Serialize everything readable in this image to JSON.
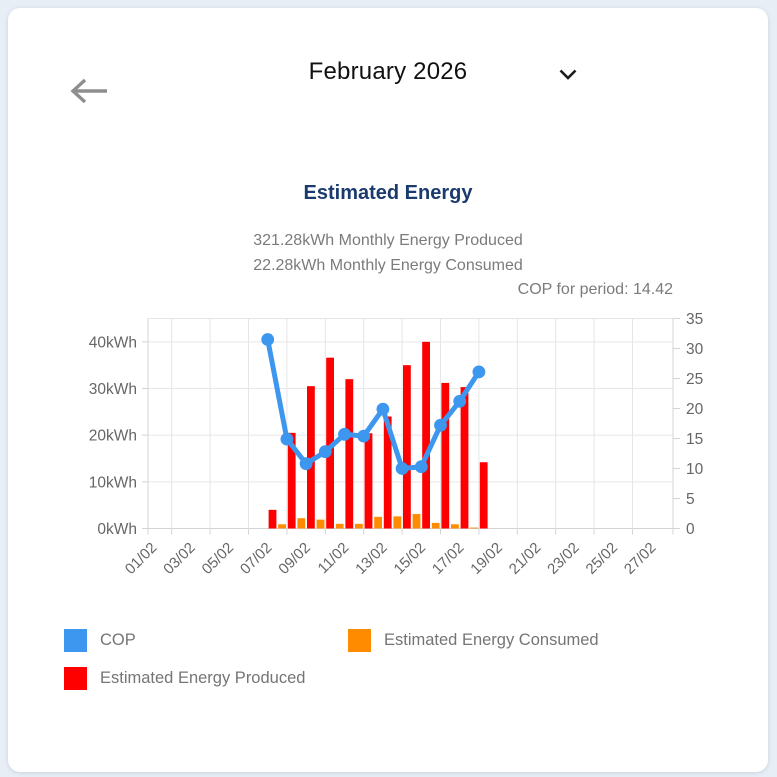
{
  "colors": {
    "page_background": "#e8eef6",
    "card_background": "#ffffff",
    "heading_navy": "#1b3b6f",
    "text_gray": "#7b7b7b",
    "axis_gray": "#666666",
    "grid_line": "#e6e6e6",
    "axis_border": "#d4d4d4",
    "cop_blue": "#3e97ef",
    "produced_red": "#fe0000",
    "consumed_orange": "#ff8c00"
  },
  "header": {
    "title": "February 2026",
    "back_icon": "arrow-left",
    "dropdown_icon": "chevron-down"
  },
  "section": {
    "title": "Estimated Energy",
    "produced_summary": "321.28kWh Monthly Energy Produced",
    "consumed_summary": "22.28kWh Monthly Energy Consumed",
    "cop_summary": "COP for period: 14.42"
  },
  "chart_data": {
    "type": "bar+line combo",
    "title": "Estimated Energy",
    "x_tick_labels": [
      "01/02",
      "03/02",
      "05/02",
      "07/02",
      "09/02",
      "11/02",
      "13/02",
      "15/02",
      "17/02",
      "19/02",
      "21/02",
      "23/02",
      "25/02",
      "27/02"
    ],
    "num_days": 28,
    "left_axis": {
      "tick_labels": [
        "0kWh",
        "10kWh",
        "20kWh",
        "30kWh",
        "40kWh"
      ],
      "tick_values": [
        0,
        10,
        20,
        30,
        40
      ],
      "range": [
        0,
        45
      ],
      "unit": "kWh"
    },
    "right_axis": {
      "tick_labels": [
        "0",
        "5",
        "10",
        "15",
        "20",
        "25",
        "30",
        "35"
      ],
      "tick_values": [
        0,
        5,
        10,
        15,
        20,
        25,
        30,
        35
      ],
      "range": [
        0,
        35
      ]
    },
    "days": [
      7,
      8,
      9,
      10,
      11,
      12,
      13,
      14,
      15,
      16,
      17,
      18
    ],
    "series": [
      {
        "name": "COP",
        "type": "line",
        "axis": "right",
        "color": "#3e97ef",
        "values": [
          31.5,
          14.9,
          10.8,
          12.8,
          15.7,
          15.4,
          19.9,
          10.0,
          10.3,
          17.2,
          21.2,
          26.1
        ]
      },
      {
        "name": "Estimated Energy Produced",
        "type": "bar",
        "axis": "left",
        "color": "#fe0000",
        "values": [
          4.0,
          20.5,
          30.5,
          36.6,
          32.0,
          20.4,
          24.0,
          35.0,
          40.0,
          31.2,
          30.3,
          14.2
        ]
      },
      {
        "name": "Estimated Energy Consumed",
        "type": "bar",
        "axis": "left",
        "color": "#ff8c00",
        "values": [
          0,
          0.9,
          2.2,
          1.9,
          1.0,
          1.0,
          2.5,
          2.6,
          3.1,
          1.2,
          0.9,
          0.2
        ]
      }
    ],
    "grid": true,
    "legend_position": "bottom"
  },
  "legend": {
    "items": [
      {
        "label": "COP",
        "color": "#3e97ef"
      },
      {
        "label": "Estimated Energy Consumed",
        "color": "#ff8c00"
      },
      {
        "label": "Estimated Energy Produced",
        "color": "#fe0000"
      }
    ]
  }
}
